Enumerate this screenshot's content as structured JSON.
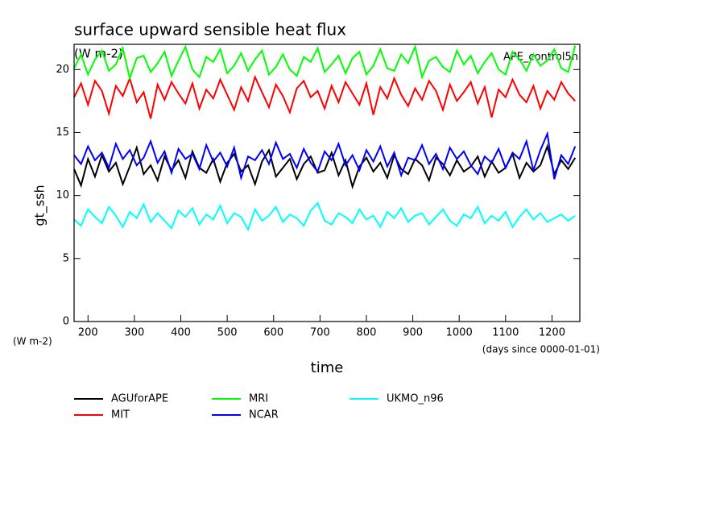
{
  "chart_data": {
    "type": "line",
    "title": "surface upward sensible heat flux",
    "subtitle": "(W m-2)",
    "annotation": "APE_control5n",
    "y_label": "gt_ssh",
    "y_unit": "(W m-2)",
    "x_label": "time",
    "x_unit": "(days since 0000-01-01)",
    "x": [
      170,
      185,
      200,
      215,
      230,
      245,
      260,
      275,
      290,
      305,
      320,
      335,
      350,
      365,
      380,
      395,
      410,
      425,
      440,
      455,
      470,
      485,
      500,
      515,
      530,
      545,
      560,
      575,
      590,
      605,
      620,
      635,
      650,
      665,
      680,
      695,
      710,
      725,
      740,
      755,
      770,
      785,
      800,
      815,
      830,
      845,
      860,
      875,
      890,
      905,
      920,
      935,
      950,
      965,
      980,
      995,
      1010,
      1025,
      1040,
      1055,
      1070,
      1085,
      1100,
      1115,
      1130,
      1145,
      1160,
      1175,
      1190,
      1205,
      1220,
      1235,
      1250
    ],
    "series": [
      {
        "name": "AGUforAPE",
        "color": "#000000",
        "values": [
          12.1,
          10.8,
          12.9,
          11.5,
          13.2,
          11.9,
          12.6,
          10.9,
          12.3,
          13.8,
          11.7,
          12.4,
          11.2,
          13.1,
          12.0,
          12.8,
          11.4,
          13.5,
          12.2,
          11.8,
          12.9,
          11.1,
          12.6,
          13.3,
          11.9,
          12.4,
          10.9,
          12.7,
          13.6,
          11.5,
          12.2,
          12.9,
          11.3,
          12.5,
          13.1,
          11.8,
          12.0,
          13.4,
          11.6,
          12.8,
          10.7,
          12.3,
          13.0,
          11.9,
          12.6,
          11.4,
          13.2,
          12.1,
          11.7,
          12.9,
          12.4,
          11.2,
          13.0,
          12.5,
          11.6,
          12.8,
          11.9,
          12.3,
          13.1,
          11.5,
          12.7,
          11.8,
          12.2,
          13.3,
          11.4,
          12.6,
          11.9,
          12.4,
          13.9,
          11.7,
          12.8,
          12.1,
          13.0
        ]
      },
      {
        "name": "MIT",
        "color": "#ff0000",
        "values": [
          17.8,
          18.9,
          17.2,
          19.1,
          18.3,
          16.5,
          18.7,
          17.9,
          19.3,
          17.4,
          18.2,
          16.1,
          18.8,
          17.6,
          19.0,
          18.1,
          17.3,
          18.9,
          16.9,
          18.4,
          17.7,
          19.2,
          18.0,
          16.8,
          18.6,
          17.5,
          19.4,
          18.2,
          17.0,
          18.8,
          17.9,
          16.6,
          18.5,
          19.1,
          17.8,
          18.3,
          16.9,
          18.7,
          17.4,
          19.0,
          18.1,
          17.2,
          18.9,
          16.4,
          18.6,
          17.7,
          19.3,
          18.0,
          17.1,
          18.5,
          17.6,
          19.1,
          18.3,
          16.8,
          18.8,
          17.5,
          18.2,
          19.0,
          17.3,
          18.6,
          16.2,
          18.4,
          17.8,
          19.2,
          18.0,
          17.4,
          18.7,
          16.9,
          18.3,
          17.6,
          19.0,
          18.1,
          17.5
        ]
      },
      {
        "name": "MRI",
        "color": "#00ff00",
        "values": [
          20.1,
          21.2,
          19.6,
          20.8,
          21.5,
          19.9,
          20.4,
          21.7,
          19.3,
          20.9,
          21.1,
          19.8,
          20.5,
          21.4,
          19.5,
          20.7,
          21.8,
          20.0,
          19.4,
          21.0,
          20.6,
          21.6,
          19.7,
          20.3,
          21.3,
          19.9,
          20.8,
          21.5,
          19.6,
          20.2,
          21.2,
          20.0,
          19.5,
          21.0,
          20.6,
          21.7,
          19.8,
          20.4,
          21.1,
          19.7,
          20.9,
          21.4,
          19.6,
          20.3,
          21.6,
          20.1,
          19.9,
          21.2,
          20.5,
          21.8,
          19.4,
          20.7,
          21.0,
          20.2,
          19.8,
          21.5,
          20.4,
          21.1,
          19.7,
          20.6,
          21.3,
          20.0,
          19.6,
          21.4,
          20.8,
          19.9,
          21.2,
          20.3,
          20.7,
          21.6,
          20.1,
          19.8,
          21.9
        ]
      },
      {
        "name": "NCAR",
        "color": "#0000ff",
        "values": [
          13.2,
          12.5,
          13.9,
          12.8,
          13.4,
          12.2,
          14.1,
          12.9,
          13.6,
          12.4,
          13.0,
          14.3,
          12.6,
          13.5,
          11.8,
          13.7,
          12.9,
          13.3,
          12.1,
          14.0,
          12.7,
          13.4,
          12.3,
          13.8,
          11.4,
          13.1,
          12.8,
          13.6,
          12.5,
          14.2,
          12.9,
          13.3,
          12.2,
          13.7,
          12.6,
          11.9,
          13.5,
          12.8,
          14.1,
          12.4,
          13.2,
          12.0,
          13.6,
          12.7,
          13.9,
          12.3,
          13.4,
          11.6,
          13.0,
          12.8,
          14.0,
          12.5,
          13.3,
          12.1,
          13.8,
          12.9,
          13.5,
          12.4,
          11.7,
          13.1,
          12.6,
          13.7,
          12.2,
          13.4,
          12.9,
          14.3,
          12.0,
          13.6,
          14.9,
          11.3,
          13.2,
          12.5,
          13.9
        ]
      },
      {
        "name": "UKMO_n96",
        "color": "#00ffff",
        "values": [
          8.1,
          7.6,
          8.9,
          8.3,
          7.8,
          9.1,
          8.4,
          7.5,
          8.7,
          8.2,
          9.3,
          7.9,
          8.6,
          8.0,
          7.4,
          8.8,
          8.3,
          9.0,
          7.7,
          8.5,
          8.1,
          9.2,
          7.8,
          8.6,
          8.3,
          7.3,
          8.9,
          8.0,
          8.4,
          9.1,
          7.9,
          8.5,
          8.2,
          7.6,
          8.8,
          9.4,
          8.0,
          7.7,
          8.6,
          8.3,
          7.8,
          8.9,
          8.1,
          8.4,
          7.5,
          8.7,
          8.2,
          9.0,
          7.9,
          8.4,
          8.6,
          7.7,
          8.3,
          8.9,
          8.0,
          7.6,
          8.5,
          8.2,
          9.1,
          7.8,
          8.4,
          8.0,
          8.7,
          7.5,
          8.3,
          8.9,
          8.1,
          8.6,
          7.9,
          8.2,
          8.5,
          8.0,
          8.4
        ]
      }
    ],
    "xlim": [
      170,
      1260
    ],
    "ylim": [
      0,
      22
    ],
    "xticks": [
      200,
      300,
      400,
      500,
      600,
      700,
      800,
      900,
      1000,
      1100,
      1200
    ],
    "yticks": [
      0,
      5,
      10,
      15,
      20
    ]
  }
}
